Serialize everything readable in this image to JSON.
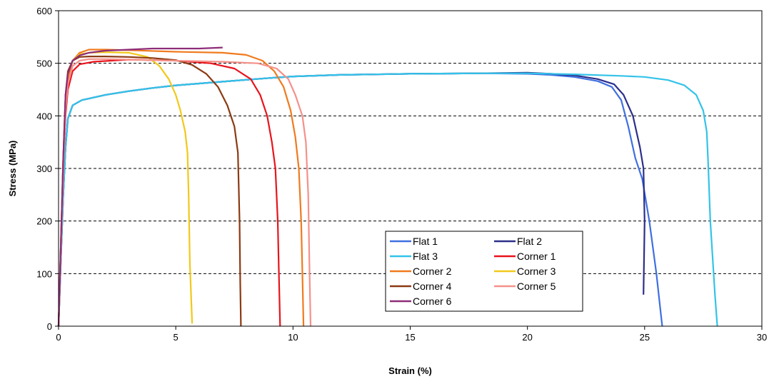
{
  "chart_data": {
    "type": "line",
    "title": "",
    "xlabel": "Strain (%)",
    "ylabel": "Stress (MPa)",
    "xlim": [
      0,
      30
    ],
    "ylim": [
      0,
      600
    ],
    "xticks": [
      0,
      5,
      10,
      15,
      20,
      25,
      30
    ],
    "yticks": [
      0,
      100,
      200,
      300,
      400,
      500,
      600
    ],
    "y_grid": "dashed",
    "legend_position": "bottom-center, two columns",
    "series": [
      {
        "name": "Flat 1",
        "color": "#3f6fe0",
        "x": [
          0,
          0.1,
          0.2,
          0.3,
          0.4,
          0.6,
          1,
          1.5,
          2,
          3,
          4,
          5,
          7,
          9,
          10,
          12,
          15,
          18,
          20,
          21,
          22,
          23,
          23.6,
          24,
          24.3,
          24.6,
          24.9,
          25.2,
          25.5,
          25.7,
          25.75
        ],
        "y": [
          0,
          130,
          250,
          340,
          395,
          420,
          430,
          435,
          440,
          447,
          453,
          458,
          465,
          472,
          475,
          478,
          480,
          481,
          480,
          478,
          474,
          466,
          455,
          430,
          380,
          320,
          280,
          200,
          100,
          20,
          0
        ]
      },
      {
        "name": "Flat 2",
        "color": "#2b2f8a",
        "x": [
          0,
          0.1,
          0.2,
          0.3,
          0.4,
          0.6,
          1,
          1.5,
          2,
          3,
          4,
          5,
          7,
          9,
          10,
          12,
          15,
          18,
          20,
          21,
          22,
          23,
          23.7,
          24.1,
          24.5,
          24.8,
          24.95,
          25,
          24.95
        ],
        "y": [
          0,
          130,
          250,
          340,
          395,
          420,
          430,
          435,
          440,
          447,
          453,
          458,
          465,
          472,
          475,
          478,
          480,
          481,
          482,
          480,
          477,
          470,
          460,
          440,
          400,
          340,
          300,
          200,
          60
        ]
      },
      {
        "name": "Flat 3",
        "color": "#33c3e8",
        "x": [
          0,
          0.1,
          0.2,
          0.3,
          0.4,
          0.6,
          1,
          1.5,
          2,
          3,
          4,
          5,
          7,
          9,
          10,
          12,
          15,
          18,
          20,
          22,
          24,
          25,
          26,
          26.7,
          27.2,
          27.5,
          27.65,
          27.7,
          27.8,
          28,
          28.1
        ],
        "y": [
          0,
          130,
          250,
          340,
          395,
          420,
          430,
          435,
          440,
          447,
          453,
          458,
          465,
          472,
          475,
          478,
          480,
          481,
          481,
          479,
          476,
          474,
          468,
          458,
          440,
          410,
          370,
          320,
          200,
          60,
          0
        ]
      },
      {
        "name": "Corner 1",
        "color": "#e8141c",
        "x": [
          0,
          0.1,
          0.2,
          0.3,
          0.4,
          0.6,
          0.9,
          1.5,
          3,
          5,
          6.5,
          7.5,
          8.2,
          8.6,
          8.9,
          9.1,
          9.25,
          9.35,
          9.4,
          9.45
        ],
        "y": [
          0,
          150,
          300,
          400,
          450,
          485,
          498,
          503,
          507,
          505,
          500,
          490,
          470,
          440,
          400,
          350,
          300,
          200,
          100,
          0
        ]
      },
      {
        "name": "Corner 2",
        "color": "#f07a1e",
        "x": [
          0,
          0.1,
          0.2,
          0.3,
          0.4,
          0.6,
          0.9,
          1.3,
          2,
          3,
          5,
          7,
          8,
          8.7,
          9.2,
          9.6,
          9.9,
          10.1,
          10.25,
          10.35,
          10.4,
          10.45
        ],
        "y": [
          0,
          150,
          300,
          420,
          470,
          505,
          520,
          526,
          526,
          525,
          522,
          520,
          516,
          505,
          485,
          455,
          410,
          360,
          300,
          200,
          100,
          0
        ]
      },
      {
        "name": "Corner 3",
        "color": "#f2c81a",
        "x": [
          0,
          0.1,
          0.2,
          0.3,
          0.4,
          0.6,
          0.9,
          1.3,
          2,
          3,
          3.8,
          4.3,
          4.7,
          5,
          5.2,
          5.4,
          5.5,
          5.55,
          5.6,
          5.7
        ],
        "y": [
          0,
          160,
          320,
          440,
          480,
          505,
          517,
          520,
          521,
          520,
          512,
          495,
          470,
          440,
          410,
          370,
          330,
          250,
          120,
          5
        ]
      },
      {
        "name": "Corner 4",
        "color": "#8b3a12",
        "x": [
          0,
          0.1,
          0.2,
          0.3,
          0.4,
          0.6,
          0.9,
          1.3,
          2,
          3,
          4,
          5,
          5.7,
          6.3,
          6.8,
          7.2,
          7.5,
          7.65,
          7.72,
          7.75,
          7.78
        ],
        "y": [
          0,
          160,
          320,
          440,
          485,
          505,
          512,
          513,
          513,
          512,
          510,
          506,
          497,
          480,
          455,
          420,
          380,
          330,
          200,
          80,
          0
        ]
      },
      {
        "name": "Corner 5",
        "color": "#f4918a",
        "x": [
          0,
          0.1,
          0.2,
          0.3,
          0.4,
          0.6,
          0.9,
          1.3,
          2,
          3,
          5,
          7,
          8.5,
          9.3,
          9.8,
          10.1,
          10.4,
          10.55,
          10.65,
          10.7,
          10.75
        ],
        "y": [
          0,
          150,
          300,
          410,
          460,
          495,
          505,
          508,
          508,
          507,
          505,
          503,
          500,
          490,
          470,
          440,
          400,
          350,
          250,
          120,
          0
        ]
      },
      {
        "name": "Corner 6",
        "color": "#8e2c78",
        "x": [
          0,
          0.1,
          0.2,
          0.3,
          0.4,
          0.6,
          0.9,
          1.3,
          2,
          3,
          4,
          5,
          6,
          7
        ],
        "y": [
          0,
          160,
          320,
          440,
          480,
          505,
          515,
          520,
          524,
          526,
          528,
          528,
          528,
          530
        ]
      }
    ]
  }
}
